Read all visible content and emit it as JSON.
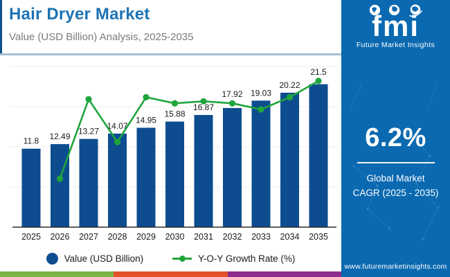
{
  "theme": {
    "title_color": "#1d73b5",
    "subtitle_color": "#7a7a7a",
    "divider_color": "#a7bfd1",
    "accent_strip_color": "#0d4d8f",
    "sidebar_bg": "#0a69b0",
    "axis_color": "#2b2b2b",
    "grid_color": "#ececec",
    "label_color": "#1a1a1a",
    "footer_stripe_colors": [
      "#7cb446",
      "#e2522b",
      "#8e2d8e"
    ]
  },
  "header": {
    "title": "Hair Dryer Market",
    "subtitle": "Value (USD Billion) Analysis, 2025-2035"
  },
  "sidebar": {
    "logo_text": "fmi",
    "logo_caption": "Future Market Insights",
    "cagr_value": "6.2%",
    "cagr_label": "Global Market",
    "cagr_sublabel": "CAGR (2025 - 2035)",
    "website": "www.futuremarketinsights.com"
  },
  "chart_data": {
    "type": "bar",
    "title": "Hair Dryer Market",
    "subtitle": "Value (USD Billion) Analysis, 2025-2035",
    "categories": [
      "2025",
      "2026",
      "2027",
      "2028",
      "2029",
      "2030",
      "2031",
      "2032",
      "2033",
      "2034",
      "2035"
    ],
    "series": [
      {
        "name": "Value (USD Billion)",
        "type": "bar",
        "color": "#0d4d8f",
        "values": [
          11.8,
          12.49,
          13.27,
          14.07,
          14.95,
          15.88,
          16.87,
          17.92,
          19.03,
          20.22,
          21.5
        ]
      },
      {
        "name": "Y-O-Y Growth Rate (%)",
        "type": "line",
        "color": "#1fa53c",
        "values": [
          null,
          5.85,
          6.24,
          6.03,
          6.25,
          6.22,
          6.23,
          6.22,
          6.19,
          6.25,
          6.33
        ]
      }
    ],
    "ylim": [
      0,
      24
    ],
    "grid": true,
    "legend_position": "bottom",
    "data_labels": true
  }
}
